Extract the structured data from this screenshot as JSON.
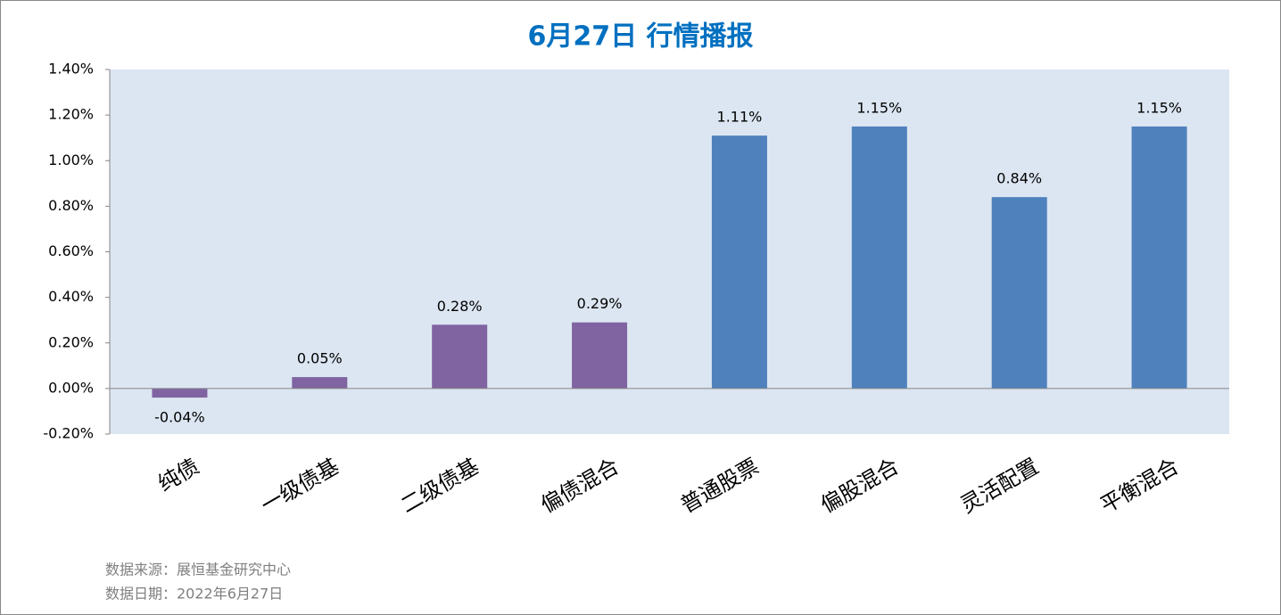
{
  "chart_data": {
    "type": "bar",
    "title": "6月27日  行情播报",
    "categories": [
      "纯债",
      "一级债基",
      "二级债基",
      "偏债混合",
      "普通股票",
      "偏股混合",
      "灵活配置",
      "平衡混合"
    ],
    "values": [
      -0.04,
      0.05,
      0.28,
      0.29,
      1.11,
      1.15,
      0.84,
      1.15
    ],
    "value_labels": [
      "-0.04%",
      "0.05%",
      "0.28%",
      "0.29%",
      "1.11%",
      "1.15%",
      "0.84%",
      "1.15%"
    ],
    "colors": [
      "#8064a2",
      "#8064a2",
      "#8064a2",
      "#8064a2",
      "#4f81bd",
      "#4f81bd",
      "#4f81bd",
      "#4f81bd"
    ],
    "ylim": [
      -0.2,
      1.4
    ],
    "yticks": [
      {
        "value": -0.2,
        "label": "-0.20%"
      },
      {
        "value": 0,
        "label": "0.00%"
      },
      {
        "value": 0.2,
        "label": "0.20%"
      },
      {
        "value": 0.4,
        "label": "0.40%"
      },
      {
        "value": 0.6,
        "label": "0.60%"
      },
      {
        "value": 0.8,
        "label": "0.80%"
      },
      {
        "value": 1.0,
        "label": "1.00%"
      },
      {
        "value": 1.2,
        "label": "1.20%"
      },
      {
        "value": 1.4,
        "label": "1.40%"
      }
    ],
    "grid": false,
    "notes": [
      "数据来源：展恒基金研究中心",
      "数据日期：2022年6月27日"
    ]
  }
}
